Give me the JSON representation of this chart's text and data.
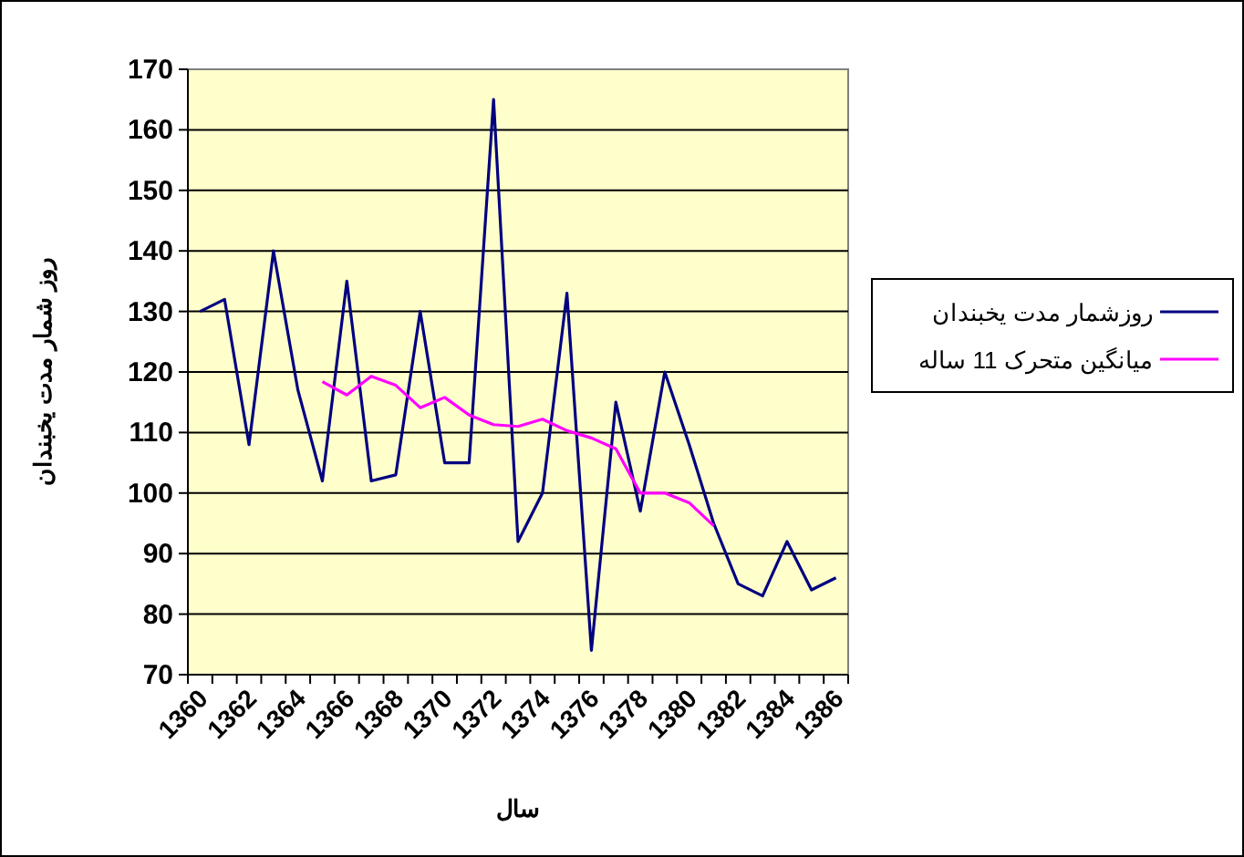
{
  "chart_data": {
    "type": "line",
    "xlabel": "سال",
    "ylabel": "روز شمار مدت یخبندان",
    "categories": [
      "1360",
      null,
      "1362",
      null,
      "1364",
      null,
      "1366",
      null,
      "1368",
      null,
      "1370",
      null,
      "1372",
      null,
      "1374",
      null,
      "1376",
      null,
      "1378",
      null,
      "1380",
      null,
      "1382",
      null,
      "1384",
      null,
      "1386"
    ],
    "series": [
      {
        "name": "روزشمار مدت یخبندان",
        "color": "#000080",
        "values": [
          130,
          132,
          108,
          140,
          117,
          102,
          135,
          102,
          103,
          130,
          105,
          105,
          165,
          92,
          100,
          133,
          74,
          115,
          97,
          120,
          108,
          95,
          85,
          83,
          92,
          84,
          86
        ]
      },
      {
        "name": "میانگین متحرک 11 ساله",
        "color": "#ff00ff",
        "values": [
          null,
          null,
          null,
          null,
          null,
          118.4,
          116.2,
          119.3,
          117.8,
          114.1,
          115.8,
          112.9,
          111.3,
          111,
          112.2,
          110.3,
          109.1,
          107.3,
          100,
          100,
          98.4,
          94.6,
          null,
          null,
          null,
          null,
          null
        ]
      }
    ],
    "ylim": [
      70,
      170
    ],
    "yticks": [
      70,
      80,
      90,
      100,
      110,
      120,
      130,
      140,
      150,
      160,
      170
    ],
    "grid": "y",
    "legend": "right",
    "marker": "none",
    "line_style": "solid"
  }
}
